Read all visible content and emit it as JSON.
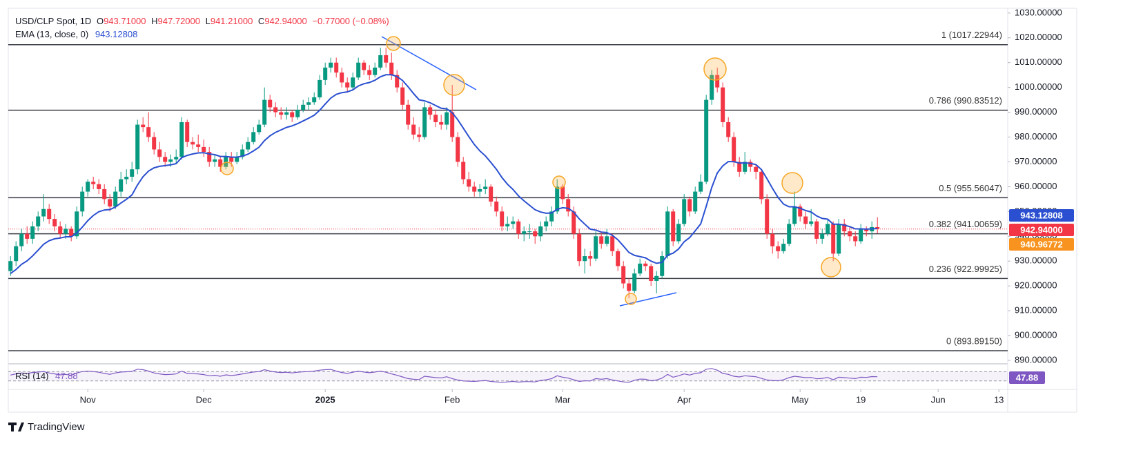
{
  "chart_data": {
    "type": "candlestick",
    "legend": {
      "symbol": "USD/CLP Spot, 1D",
      "fields": [
        {
          "key": "O",
          "value": "943.71000"
        },
        {
          "key": "H",
          "value": "947.72000"
        },
        {
          "key": "L",
          "value": "941.21000"
        },
        {
          "key": "C",
          "value": "942.94000"
        }
      ],
      "change": "−0.77000 (−0.08%)"
    },
    "up_color": "#089981",
    "down_color": "#f23645",
    "xlim": [
      -0.4,
      180.6
    ],
    "ylim": [
      888.6,
      1031.9
    ],
    "xticks": [
      {
        "value": 14,
        "label": "Nov"
      },
      {
        "value": 35,
        "label": "Dec"
      },
      {
        "value": 57,
        "label": "2025"
      },
      {
        "value": 80,
        "label": "Feb"
      },
      {
        "value": 100,
        "label": "Mar"
      },
      {
        "value": 122,
        "label": "Apr"
      },
      {
        "value": 143,
        "label": "May"
      },
      {
        "value": 154,
        "label": "19"
      },
      {
        "value": 168,
        "label": "Jun"
      },
      {
        "value": 179,
        "label": "13"
      }
    ],
    "yticks": [
      {
        "value": 890,
        "label": "890.00000"
      },
      {
        "value": 900,
        "label": "900.00000"
      },
      {
        "value": 910,
        "label": "910.00000"
      },
      {
        "value": 920,
        "label": "920.00000"
      },
      {
        "value": 930,
        "label": "930.00000"
      },
      {
        "value": 940,
        "label": "940.00000"
      },
      {
        "value": 950,
        "label": "950.00000"
      },
      {
        "value": 960,
        "label": "960.00000"
      },
      {
        "value": 970,
        "label": "970.00000"
      },
      {
        "value": 980,
        "label": "980.00000"
      },
      {
        "value": 990,
        "label": "990.00000"
      },
      {
        "value": 1000,
        "label": "1000.00000"
      },
      {
        "value": 1010,
        "label": "1010.00000"
      },
      {
        "value": 1020,
        "label": "1020.00000"
      },
      {
        "value": 1030,
        "label": "1030.00000"
      }
    ],
    "ohlc": [
      [
        926,
        932,
        924,
        930
      ],
      [
        930,
        938,
        928,
        936
      ],
      [
        936,
        943,
        934,
        941
      ],
      [
        941,
        944,
        937,
        939
      ],
      [
        939,
        946,
        937,
        944
      ],
      [
        944,
        950,
        942,
        948
      ],
      [
        948,
        957,
        946,
        951
      ],
      [
        951,
        953,
        945,
        947
      ],
      [
        947,
        949,
        942,
        944
      ],
      [
        944,
        946,
        939,
        941
      ],
      [
        941,
        945,
        939,
        943
      ],
      [
        943,
        944,
        938,
        940
      ],
      [
        940,
        952,
        939,
        950
      ],
      [
        950,
        960,
        948,
        958
      ],
      [
        958,
        963,
        956,
        962
      ],
      [
        962,
        964,
        959,
        961
      ],
      [
        961,
        963,
        957,
        959
      ],
      [
        959,
        961,
        953,
        955
      ],
      [
        955,
        957,
        950,
        952
      ],
      [
        952,
        960,
        951,
        958
      ],
      [
        958,
        966,
        956,
        963
      ],
      [
        963,
        967,
        961,
        964
      ],
      [
        964,
        970,
        962,
        967
      ],
      [
        967,
        987,
        965,
        985
      ],
      [
        985,
        988,
        982,
        984
      ],
      [
        984,
        990,
        978,
        980
      ],
      [
        980,
        982,
        973,
        975
      ],
      [
        975,
        978,
        970,
        972
      ],
      [
        972,
        974,
        968,
        970
      ],
      [
        970,
        973,
        968,
        971
      ],
      [
        971,
        975,
        969,
        972
      ],
      [
        972,
        988,
        971,
        986
      ],
      [
        986,
        987,
        976,
        978
      ],
      [
        978,
        980,
        975,
        977
      ],
      [
        977,
        981,
        974,
        976
      ],
      [
        976,
        979,
        972,
        974
      ],
      [
        974,
        976,
        968,
        970
      ],
      [
        970,
        973,
        968,
        971
      ],
      [
        971,
        972,
        966,
        968
      ],
      [
        968,
        974,
        967,
        972
      ],
      [
        972,
        974,
        968,
        970
      ],
      [
        970,
        974,
        969,
        972
      ],
      [
        972,
        977,
        971,
        975
      ],
      [
        975,
        980,
        974,
        978
      ],
      [
        978,
        984,
        977,
        982
      ],
      [
        982,
        987,
        981,
        985
      ],
      [
        985,
        1000,
        984,
        995
      ],
      [
        995,
        997,
        990,
        992
      ],
      [
        992,
        994,
        988,
        990
      ],
      [
        990,
        992,
        987,
        989
      ],
      [
        989,
        992,
        987,
        990
      ],
      [
        990,
        991,
        986,
        988
      ],
      [
        988,
        993,
        987,
        991
      ],
      [
        991,
        995,
        990,
        993
      ],
      [
        993,
        996,
        991,
        994
      ],
      [
        994,
        998,
        993,
        996
      ],
      [
        996,
        1005,
        995,
        1003
      ],
      [
        1003,
        1010,
        1001,
        1008
      ],
      [
        1008,
        1012,
        1006,
        1010
      ],
      [
        1010,
        1012,
        1004,
        1006
      ],
      [
        1006,
        1008,
        1000,
        1002
      ],
      [
        1002,
        1004,
        998,
        1000
      ],
      [
        1000,
        1006,
        999,
        1004
      ],
      [
        1004,
        1012,
        1003,
        1010
      ],
      [
        1010,
        1011,
        1005,
        1007
      ],
      [
        1007,
        1009,
        1003,
        1005
      ],
      [
        1005,
        1010,
        1004,
        1008
      ],
      [
        1008,
        1016,
        1007,
        1013
      ],
      [
        1013,
        1016,
        1008,
        1010
      ],
      [
        1010,
        1014,
        1003,
        1005
      ],
      [
        1005,
        1007,
        998,
        1000
      ],
      [
        1000,
        1002,
        991,
        993
      ],
      [
        993,
        995,
        983,
        985
      ],
      [
        985,
        988,
        979,
        981
      ],
      [
        981,
        984,
        978,
        980
      ],
      [
        980,
        994,
        979,
        992
      ],
      [
        992,
        993,
        987,
        989
      ],
      [
        989,
        991,
        984,
        986
      ],
      [
        986,
        989,
        983,
        985
      ],
      [
        985,
        992,
        983,
        990
      ],
      [
        990,
        1001,
        978,
        980
      ],
      [
        980,
        982,
        968,
        970
      ],
      [
        970,
        972,
        961,
        963
      ],
      [
        963,
        966,
        958,
        960
      ],
      [
        960,
        962,
        956,
        958
      ],
      [
        958,
        961,
        956,
        959
      ],
      [
        959,
        963,
        957,
        960
      ],
      [
        960,
        961,
        952,
        954
      ],
      [
        954,
        956,
        948,
        950
      ],
      [
        950,
        952,
        942,
        944
      ],
      [
        944,
        948,
        942,
        945
      ],
      [
        945,
        948,
        943,
        946
      ],
      [
        946,
        947,
        939,
        941
      ],
      [
        941,
        944,
        938,
        942
      ],
      [
        942,
        945,
        939,
        942
      ],
      [
        942,
        943,
        937,
        940
      ],
      [
        940,
        946,
        938,
        944
      ],
      [
        944,
        948,
        942,
        946
      ],
      [
        946,
        952,
        944,
        950
      ],
      [
        950,
        963,
        949,
        960
      ],
      [
        960,
        961,
        953,
        955
      ],
      [
        955,
        957,
        948,
        950
      ],
      [
        950,
        952,
        939,
        941
      ],
      [
        941,
        943,
        928,
        930
      ],
      [
        930,
        935,
        925,
        932
      ],
      [
        932,
        934,
        928,
        931
      ],
      [
        931,
        942,
        930,
        940
      ],
      [
        940,
        942,
        935,
        937
      ],
      [
        937,
        943,
        936,
        940
      ],
      [
        940,
        941,
        932,
        934
      ],
      [
        934,
        935,
        926,
        928
      ],
      [
        928,
        930,
        919,
        921
      ],
      [
        921,
        923,
        915,
        918
      ],
      [
        918,
        927,
        917,
        925
      ],
      [
        925,
        931,
        924,
        929
      ],
      [
        929,
        930,
        926,
        928
      ],
      [
        928,
        929,
        920,
        922
      ],
      [
        922,
        926,
        917,
        924
      ],
      [
        924,
        934,
        923,
        932
      ],
      [
        932,
        952,
        931,
        950
      ],
      [
        950,
        951,
        936,
        938
      ],
      [
        938,
        947,
        937,
        945
      ],
      [
        945,
        957,
        944,
        955
      ],
      [
        955,
        956,
        948,
        950
      ],
      [
        950,
        960,
        949,
        958
      ],
      [
        958,
        965,
        957,
        962
      ],
      [
        962,
        997,
        961,
        995
      ],
      [
        995,
        1007,
        993,
        1005
      ],
      [
        1005,
        1008,
        998,
        1000
      ],
      [
        1000,
        1002,
        984,
        986
      ],
      [
        986,
        988,
        978,
        980
      ],
      [
        980,
        982,
        968,
        970
      ],
      [
        970,
        972,
        964,
        966
      ],
      [
        966,
        974,
        965,
        970
      ],
      [
        970,
        971,
        966,
        968
      ],
      [
        968,
        969,
        963,
        966
      ],
      [
        966,
        967,
        953,
        955
      ],
      [
        955,
        957,
        939,
        941
      ],
      [
        941,
        943,
        933,
        936
      ],
      [
        936,
        938,
        931,
        934
      ],
      [
        934,
        939,
        933,
        937
      ],
      [
        937,
        947,
        936,
        945
      ],
      [
        945,
        958,
        944,
        952
      ],
      [
        952,
        953,
        946,
        948
      ],
      [
        948,
        950,
        943,
        945
      ],
      [
        945,
        951,
        944,
        946
      ],
      [
        946,
        947,
        937,
        939
      ],
      [
        939,
        943,
        937,
        941
      ],
      [
        941,
        947,
        940,
        945
      ],
      [
        945,
        946,
        930,
        933
      ],
      [
        933,
        947,
        932,
        945
      ],
      [
        945,
        947,
        940,
        942
      ],
      [
        942,
        944,
        938,
        940
      ],
      [
        940,
        942,
        936,
        938
      ],
      [
        938,
        945,
        937,
        943
      ],
      [
        943,
        944,
        940,
        942
      ],
      [
        942,
        946,
        939,
        943.71
      ],
      [
        943.71,
        947.72,
        941.21,
        942.94
      ]
    ],
    "ema": {
      "name": "EMA (13, close, 0)",
      "color": "#2a4fd0",
      "values": [
        925,
        926.6,
        928.7,
        930.1,
        932.1,
        934.4,
        936.8,
        938.2,
        939.0,
        939.3,
        939.8,
        939.8,
        941.3,
        943.7,
        946.3,
        948.4,
        949.9,
        950.6,
        950.8,
        951.8,
        953.4,
        954.9,
        956.7,
        960.7,
        964.0,
        966.3,
        967.6,
        968.2,
        968.5,
        968.8,
        969.3,
        971.7,
        972.6,
        973.2,
        973.6,
        973.7,
        973.2,
        972.9,
        972.2,
        972.2,
        971.9,
        971.9,
        972.3,
        973.1,
        974.4,
        975.9,
        978.6,
        980.5,
        981.9,
        982.9,
        983.9,
        984.5,
        985.4,
        986.5,
        987.6,
        988.8,
        990.8,
        993.3,
        995.7,
        997.2,
        997.9,
        998.2,
        999.0,
        1000.6,
        1001.5,
        1002.0,
        1002.9,
        1004.3,
        1005.1,
        1005.1,
        1004.4,
        1002.8,
        1000.3,
        997.5,
        995.0,
        994.6,
        993.8,
        992.7,
        991.6,
        991.4,
        989.8,
        987.0,
        983.6,
        980.2,
        977.0,
        974.4,
        972.4,
        969.8,
        967.0,
        963.7,
        961.0,
        958.9,
        956.3,
        954.3,
        952.5,
        950.7,
        949.8,
        949.3,
        949.4,
        950.9,
        951.5,
        951.3,
        949.8,
        947.0,
        944.9,
        942.9,
        942.5,
        941.7,
        941.5,
        940.4,
        938.6,
        936.1,
        933.5,
        932.3,
        931.8,
        931.3,
        930.0,
        929.1,
        929.5,
        932.4,
        933.2,
        934.9,
        937.8,
        939.5,
        942.2,
        945.0,
        952.1,
        959.7,
        965.5,
        968.4,
        970.1,
        970.1,
        969.5,
        969.6,
        969.4,
        968.9,
        966.9,
        963.2,
        959.3,
        955.7,
        953.0,
        951.9,
        951.9,
        951.3,
        950.4,
        949.8,
        948.2,
        947.2,
        946.9,
        944.9,
        944.9,
        944.5,
        943.9,
        943.0,
        943.0,
        942.9,
        943.0,
        943.12808
      ]
    },
    "rsi": {
      "name": "RSI (14)",
      "color": "#7e57c2",
      "ylim": [
        0,
        100
      ],
      "bands": [
        70,
        30
      ],
      "values": [
        55,
        60,
        64,
        62,
        66,
        68,
        70,
        64,
        60,
        56,
        58,
        54,
        64,
        70,
        72,
        70,
        67,
        62,
        58,
        64,
        68,
        69,
        71,
        80,
        78,
        72,
        64,
        60,
        57,
        58,
        60,
        72,
        62,
        61,
        60,
        57,
        52,
        54,
        50,
        56,
        53,
        56,
        60,
        64,
        68,
        70,
        78,
        72,
        68,
        66,
        67,
        64,
        67,
        69,
        70,
        72,
        76,
        78,
        79,
        72,
        66,
        62,
        67,
        72,
        68,
        65,
        68,
        72,
        67,
        60,
        54,
        47,
        40,
        37,
        36,
        50,
        47,
        44,
        43,
        48,
        40,
        34,
        30,
        29,
        28,
        30,
        32,
        28,
        26,
        24,
        26,
        28,
        25,
        27,
        27,
        26,
        32,
        35,
        40,
        52,
        46,
        42,
        35,
        28,
        31,
        30,
        40,
        37,
        40,
        34,
        30,
        26,
        24,
        33,
        38,
        37,
        31,
        34,
        42,
        58,
        46,
        52,
        60,
        55,
        62,
        65,
        80,
        83,
        76,
        62,
        58,
        50,
        47,
        52,
        50,
        48,
        41,
        34,
        32,
        31,
        35,
        44,
        50,
        47,
        44,
        45,
        39,
        41,
        45,
        35,
        46,
        44,
        42,
        40,
        46,
        45,
        48.5,
        47.88
      ]
    },
    "fib_levels": [
      {
        "value": 1017.22944,
        "label": "1 (1017.22944)"
      },
      {
        "value": 990.83512,
        "label": "0.786 (990.83512)"
      },
      {
        "value": 955.56047,
        "label": "0.5 (955.56047)"
      },
      {
        "value": 941.00659,
        "label": "0.382 (941.00659)"
      },
      {
        "value": 922.99925,
        "label": "0.236 (922.99925)"
      },
      {
        "value": 893.8915,
        "label": "0 (893.89150)"
      }
    ],
    "price_labels": [
      {
        "value": 943.12808,
        "label": "943.12808",
        "color": "#2a4fd0"
      },
      {
        "value": 942.94,
        "label": "942.94000",
        "color": "#f23645"
      },
      {
        "value": 940.96772,
        "label": "940.96772",
        "color": "#f7931e"
      }
    ],
    "brand": "TradingView"
  }
}
